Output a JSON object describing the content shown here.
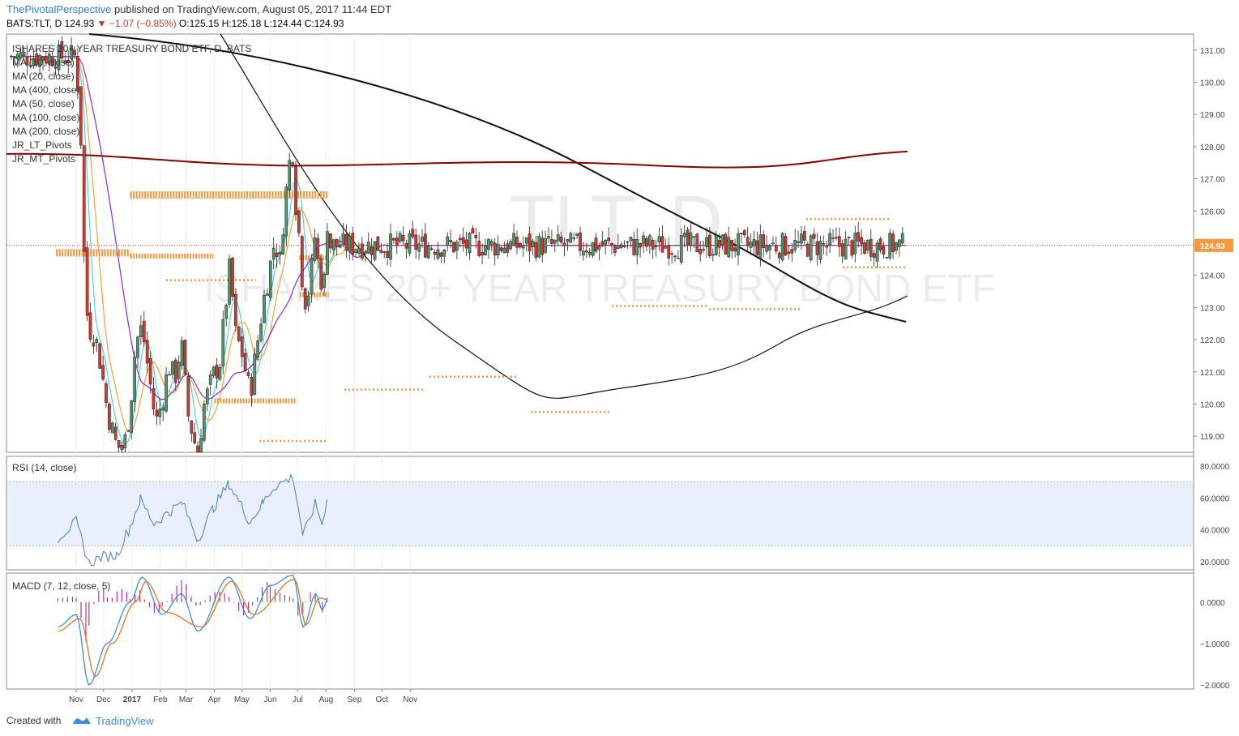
{
  "header": {
    "author": "ThePivotalPerspective",
    "published_text": "published on TradingView.com, August 05, 2017 11:44 EDT",
    "symbol_line": "BATS:TLT, D  124.93",
    "change": "−1.07 (−0.85%)",
    "ohlc": "O:125.15 H:125.18 L:124.44 C:124.93"
  },
  "watermark": {
    "ticker": "TLT, D",
    "name": "ISHARES 20+ YEAR TREASURY BOND ETF"
  },
  "legend": [
    "ISHARES 20+ YEAR TREASURY BOND ETF, D, BATS",
    "MA (10, close)",
    "MA (20, close)",
    "MA (400, close)",
    "MA (50, close)",
    "MA (100, close)",
    "MA (200, close)",
    "JR_LT_Pivots",
    "JR_MT_Pivots"
  ],
  "price_axis": [
    "131.00",
    "130.00",
    "129.00",
    "128.00",
    "127.00",
    "126.00",
    "125.00",
    "124.00",
    "123.00",
    "122.00",
    "121.00",
    "120.00",
    "119.00"
  ],
  "last_price_label": "124.93",
  "rsi_panel": {
    "title": "RSI (14, close)",
    "axis": [
      "80.0000",
      "60.0000",
      "40.0000",
      "20.0000"
    ]
  },
  "macd_panel": {
    "title": "MACD (7, 12, close, 5)",
    "axis": [
      "0.0000",
      "−1.0000",
      "−2.0000"
    ]
  },
  "time_axis": [
    "Nov",
    "Dec",
    "2017",
    "Feb",
    "Mar",
    "Apr",
    "May",
    "Jun",
    "Jul",
    "Aug",
    "Sep",
    "Oct",
    "Nov"
  ],
  "footer": {
    "created_with": "Created with",
    "brand": "TradingView"
  },
  "colors": {
    "up": "#53946b",
    "down": "#cc3b32",
    "ma10": "#4dd5e6",
    "ma20": "#f5a332",
    "ma50": "#8a2be2",
    "ma100": "#111111",
    "ma200": "#8b0000",
    "pivots": "#f8983c",
    "rsi": "#4a7cc9",
    "macd": "#3d8fde",
    "signal": "#f07020",
    "hist": "#c23582"
  },
  "chart_data": [
    {
      "type": "candlestick",
      "title": "ISHARES 20+ YEAR TREASURY BOND ETF, D, BATS",
      "symbol": "BATS:TLT",
      "timeframe": "D",
      "ylim": [
        118.5,
        131.5
      ],
      "last_close": 124.93,
      "x_ticks": [
        "Nov",
        "Dec",
        "2017",
        "Feb",
        "Mar",
        "Apr",
        "May",
        "Jun",
        "Jul",
        "Aug",
        "Sep",
        "Oct",
        "Nov"
      ],
      "close_path": [
        {
          "date": "2016-11-01",
          "close": 130.8
        },
        {
          "date": "2016-11-08",
          "close": 127.3
        },
        {
          "date": "2016-11-10",
          "close": 124.0
        },
        {
          "date": "2016-11-14",
          "close": 122.4
        },
        {
          "date": "2016-11-22",
          "close": 122.1
        },
        {
          "date": "2016-11-28",
          "close": 121.2
        },
        {
          "date": "2016-12-05",
          "close": 119.8
        },
        {
          "date": "2016-12-15",
          "close": 118.7
        },
        {
          "date": "2016-12-23",
          "close": 118.6
        },
        {
          "date": "2016-12-30",
          "close": 119.9
        },
        {
          "date": "2017-01-05",
          "close": 121.9
        },
        {
          "date": "2017-01-12",
          "close": 122.4
        },
        {
          "date": "2017-01-20",
          "close": 120.8
        },
        {
          "date": "2017-01-27",
          "close": 119.4
        },
        {
          "date": "2017-02-03",
          "close": 120.1
        },
        {
          "date": "2017-02-10",
          "close": 121.2
        },
        {
          "date": "2017-02-17",
          "close": 120.8
        },
        {
          "date": "2017-02-24",
          "close": 121.9
        },
        {
          "date": "2017-03-03",
          "close": 119.7
        },
        {
          "date": "2017-03-14",
          "close": 118.4
        },
        {
          "date": "2017-03-20",
          "close": 119.9
        },
        {
          "date": "2017-03-31",
          "close": 120.9
        },
        {
          "date": "2017-04-07",
          "close": 121.3
        },
        {
          "date": "2017-04-13",
          "close": 123.0
        },
        {
          "date": "2017-04-18",
          "close": 124.3
        },
        {
          "date": "2017-04-24",
          "close": 122.2
        },
        {
          "date": "2017-05-01",
          "close": 121.6
        },
        {
          "date": "2017-05-10",
          "close": 120.3
        },
        {
          "date": "2017-05-17",
          "close": 121.7
        },
        {
          "date": "2017-05-24",
          "close": 123.1
        },
        {
          "date": "2017-06-01",
          "close": 124.3
        },
        {
          "date": "2017-06-06",
          "close": 125.1
        },
        {
          "date": "2017-06-12",
          "close": 124.4
        },
        {
          "date": "2017-06-16",
          "close": 126.0
        },
        {
          "date": "2017-06-22",
          "close": 127.5
        },
        {
          "date": "2017-06-26",
          "close": 127.9
        },
        {
          "date": "2017-06-29",
          "close": 126.2
        },
        {
          "date": "2017-07-05",
          "close": 124.6
        },
        {
          "date": "2017-07-07",
          "close": 123.1
        },
        {
          "date": "2017-07-14",
          "close": 123.6
        },
        {
          "date": "2017-07-20",
          "close": 125.3
        },
        {
          "date": "2017-07-25",
          "close": 123.9
        },
        {
          "date": "2017-07-31",
          "close": 123.8
        },
        {
          "date": "2017-08-02",
          "close": 125.9
        },
        {
          "date": "2017-08-04",
          "close": 124.93
        }
      ],
      "moving_averages": [
        {
          "name": "MA (10, close)",
          "color": "#4dd5e6"
        },
        {
          "name": "MA (20, close)",
          "color": "#f5a332"
        },
        {
          "name": "MA (400, close)",
          "color": "#111111"
        },
        {
          "name": "MA (50, close)",
          "color": "#8a2be2"
        },
        {
          "name": "MA (100, close)",
          "color": "#111111"
        },
        {
          "name": "MA (200, close)",
          "color": "#8b0000",
          "approx_level": 127.8
        }
      ],
      "pivot_levels": [
        {
          "name": "JR_LT_Pivots",
          "level": 126.5,
          "from": "2016-12-30",
          "to": "2017-08-04"
        },
        {
          "name": "JR_LT_Pivots",
          "level": 124.7,
          "from": "2016-10-10",
          "to": "2016-12-30"
        },
        {
          "name": "JR_MT_Pivots",
          "level": 124.6,
          "from": "2016-12-30",
          "to": "2017-03-31"
        },
        {
          "name": "JR_MT_Pivots",
          "level": 124.55,
          "from": "2017-07-03",
          "to": "2017-08-04"
        },
        {
          "name": "JR_MT_Pivots",
          "level": 123.4,
          "from": "2017-07-03",
          "to": "2017-08-04"
        },
        {
          "name": "JR_MT_Pivots",
          "level": 120.1,
          "from": "2017-04-01",
          "to": "2017-06-30"
        }
      ]
    },
    {
      "type": "line",
      "title": "RSI (14, close)",
      "ylim": [
        15,
        86
      ],
      "bands": [
        30,
        70
      ],
      "x_ticks": [
        "Nov",
        "Dec",
        "2017",
        "Feb",
        "Mar",
        "Apr",
        "May",
        "Jun",
        "Jul",
        "Aug"
      ],
      "series": [
        {
          "name": "RSI",
          "values": [
            {
              "date": "2016-10-12",
              "v": 35
            },
            {
              "date": "2016-11-01",
              "v": 45
            },
            {
              "date": "2016-11-08",
              "v": 32
            },
            {
              "date": "2016-11-15",
              "v": 19
            },
            {
              "date": "2016-11-28",
              "v": 23
            },
            {
              "date": "2016-12-15",
              "v": 24
            },
            {
              "date": "2016-12-30",
              "v": 42
            },
            {
              "date": "2017-01-10",
              "v": 59
            },
            {
              "date": "2017-01-25",
              "v": 44
            },
            {
              "date": "2017-02-10",
              "v": 51
            },
            {
              "date": "2017-02-25",
              "v": 57
            },
            {
              "date": "2017-03-14",
              "v": 34
            },
            {
              "date": "2017-03-31",
              "v": 54
            },
            {
              "date": "2017-04-17",
              "v": 69
            },
            {
              "date": "2017-05-10",
              "v": 45
            },
            {
              "date": "2017-05-24",
              "v": 57
            },
            {
              "date": "2017-06-05",
              "v": 67
            },
            {
              "date": "2017-06-26",
              "v": 73
            },
            {
              "date": "2017-07-07",
              "v": 36
            },
            {
              "date": "2017-07-20",
              "v": 56
            },
            {
              "date": "2017-07-28",
              "v": 44
            },
            {
              "date": "2017-08-02",
              "v": 60
            },
            {
              "date": "2017-08-04",
              "v": 53
            }
          ]
        }
      ]
    },
    {
      "type": "line",
      "title": "MACD (7, 12, close, 5)",
      "ylim": [
        -2.1,
        0.7
      ],
      "x_ticks": [
        "Nov",
        "Dec",
        "2017",
        "Feb",
        "Mar",
        "Apr",
        "May",
        "Jun",
        "Jul",
        "Aug"
      ],
      "series": [
        {
          "name": "MACD",
          "values": [
            {
              "date": "2016-10-12",
              "v": -0.6
            },
            {
              "date": "2016-11-01",
              "v": -0.3
            },
            {
              "date": "2016-11-15",
              "v": -2.0
            },
            {
              "date": "2016-12-05",
              "v": -1.0
            },
            {
              "date": "2016-12-30",
              "v": 0.0
            },
            {
              "date": "2017-01-12",
              "v": 0.6
            },
            {
              "date": "2017-02-03",
              "v": -0.3
            },
            {
              "date": "2017-02-24",
              "v": 0.2
            },
            {
              "date": "2017-03-14",
              "v": -0.7
            },
            {
              "date": "2017-04-17",
              "v": 0.6
            },
            {
              "date": "2017-05-10",
              "v": -0.4
            },
            {
              "date": "2017-06-01",
              "v": 0.4
            },
            {
              "date": "2017-06-26",
              "v": 0.65
            },
            {
              "date": "2017-07-07",
              "v": -0.6
            },
            {
              "date": "2017-07-21",
              "v": 0.2
            },
            {
              "date": "2017-07-28",
              "v": -0.2
            },
            {
              "date": "2017-08-04",
              "v": 0.15
            }
          ]
        },
        {
          "name": "Signal",
          "values": [
            {
              "date": "2016-10-12",
              "v": -0.7
            },
            {
              "date": "2016-11-05",
              "v": -0.4
            },
            {
              "date": "2016-11-22",
              "v": -1.8
            },
            {
              "date": "2016-12-10",
              "v": -1.0
            },
            {
              "date": "2017-01-05",
              "v": 0.0
            },
            {
              "date": "2017-01-16",
              "v": 0.5
            },
            {
              "date": "2017-02-08",
              "v": -0.25
            },
            {
              "date": "2017-03-18",
              "v": -0.6
            },
            {
              "date": "2017-04-20",
              "v": 0.5
            },
            {
              "date": "2017-05-14",
              "v": -0.3
            },
            {
              "date": "2017-06-28",
              "v": 0.55
            },
            {
              "date": "2017-07-10",
              "v": -0.55
            },
            {
              "date": "2017-07-25",
              "v": 0.1
            },
            {
              "date": "2017-08-04",
              "v": 0.05
            }
          ]
        }
      ]
    }
  ]
}
